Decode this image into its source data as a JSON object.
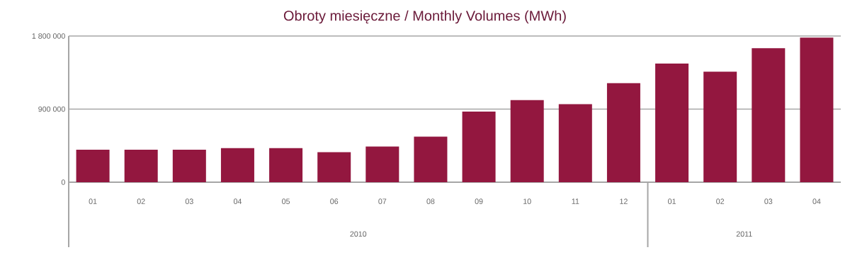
{
  "chart_data": {
    "type": "bar",
    "title": "Obroty miesięczne / Monthly Volumes (MWh)",
    "categories": [
      "01",
      "02",
      "03",
      "04",
      "05",
      "06",
      "07",
      "08",
      "09",
      "10",
      "11",
      "12",
      "01",
      "02",
      "03",
      "04"
    ],
    "values": [
      400000,
      400000,
      400000,
      420000,
      420000,
      370000,
      440000,
      560000,
      870000,
      1010000,
      960000,
      1220000,
      1460000,
      1360000,
      1650000,
      1780000
    ],
    "color": "#93173f",
    "ylim": [
      0,
      1800000
    ],
    "yticks": [
      {
        "value": 0,
        "label": "0"
      },
      {
        "value": 900000,
        "label": "900 000"
      },
      {
        "value": 1800000,
        "label": "1 800 000"
      }
    ],
    "grid": "y",
    "annotations": [
      "2010",
      "2011"
    ]
  }
}
